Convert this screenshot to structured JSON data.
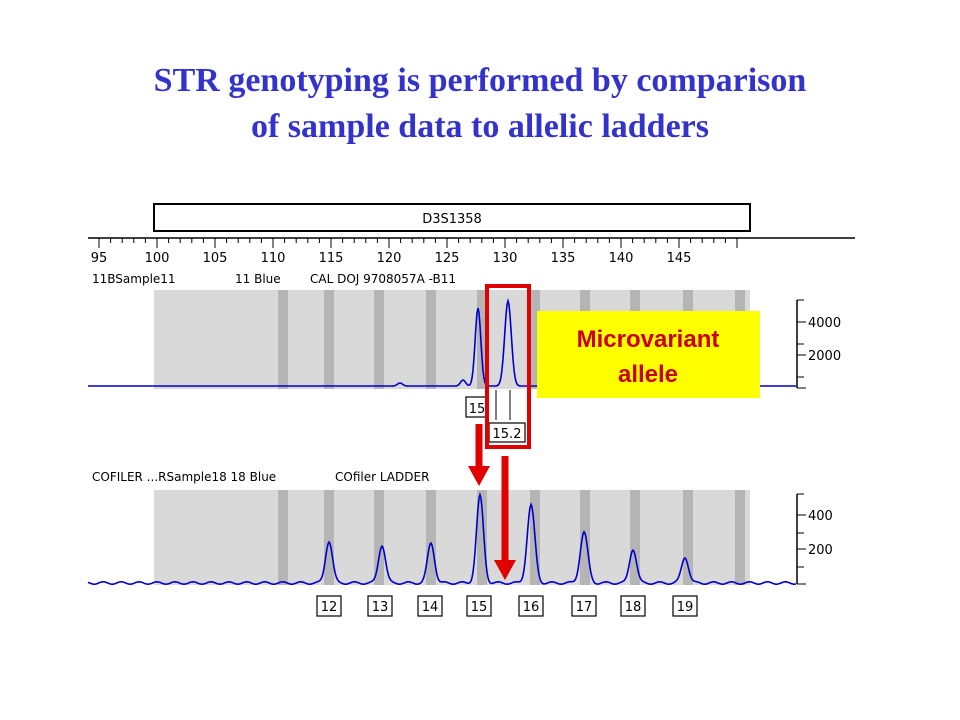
{
  "slide": {
    "title_line1": "STR genotyping is performed by comparison",
    "title_line2": "of sample data to allelic ladders"
  },
  "marker_label": "D3S1358",
  "size_axis": {
    "ticks": [
      95,
      100,
      105,
      110,
      115,
      120,
      125,
      130,
      135,
      140,
      145
    ]
  },
  "sample_panel": {
    "header_parts": [
      "11BSample11",
      "11 Blue",
      "CAL DOJ 9708057A -B11"
    ],
    "y_ticks": [
      "4000",
      "2000"
    ],
    "allele_calls": [
      "15",
      "15.2"
    ]
  },
  "ladder_panel": {
    "header_parts": [
      "COFILER ...RSample18 18 Blue",
      "COfiler LADDER"
    ],
    "y_ticks": [
      "400",
      "200"
    ],
    "allele_labels": [
      "12",
      "13",
      "14",
      "15",
      "16",
      "17",
      "18",
      "19"
    ]
  },
  "callout": {
    "line1": "Microvariant",
    "line2": "allele"
  },
  "colors": {
    "title": "#3333cc",
    "trace": "#0000cc",
    "highlight": "#e00000",
    "callout_bg": "#ffff00",
    "bin_shading": "#d9d9d9"
  }
}
